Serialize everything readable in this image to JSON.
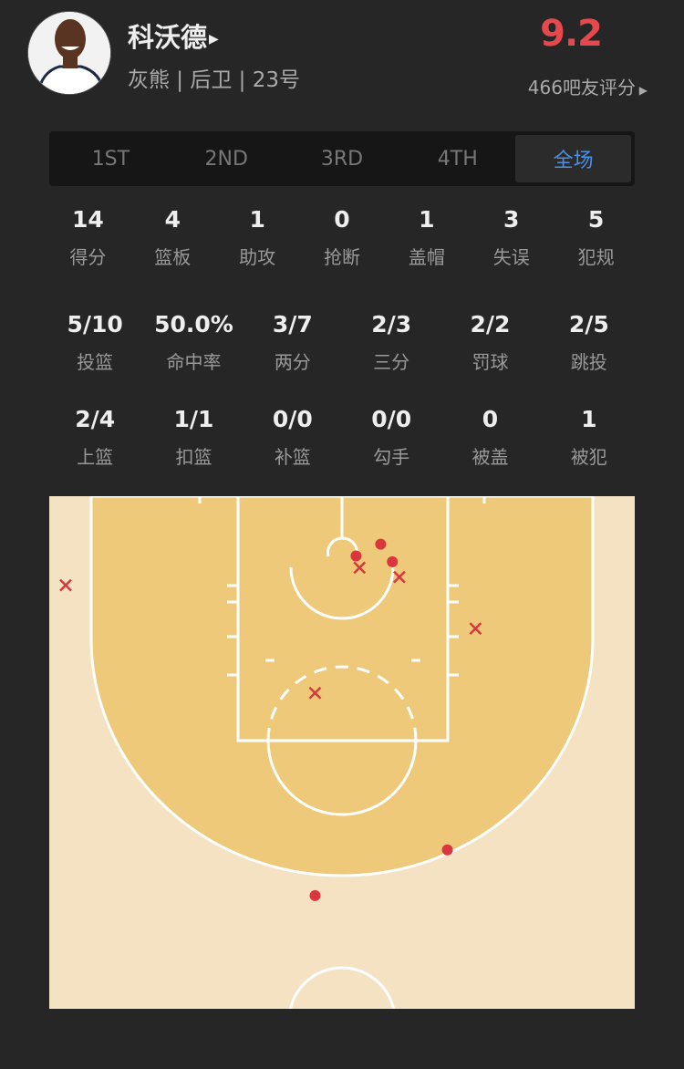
{
  "player": {
    "name": "科沃德",
    "info": "灰熊 | 后卫 | 23号",
    "score": "9.2",
    "rating_text": "466吧友评分"
  },
  "tabs": [
    {
      "label": "1ST"
    },
    {
      "label": "2ND"
    },
    {
      "label": "3RD"
    },
    {
      "label": "4TH"
    },
    {
      "label": "全场",
      "active": true
    }
  ],
  "stats_main": [
    {
      "v": "14",
      "l": "得分"
    },
    {
      "v": "4",
      "l": "篮板"
    },
    {
      "v": "1",
      "l": "助攻"
    },
    {
      "v": "0",
      "l": "抢断"
    },
    {
      "v": "1",
      "l": "盖帽"
    },
    {
      "v": "3",
      "l": "失误"
    },
    {
      "v": "5",
      "l": "犯规"
    }
  ],
  "stats_shooting": [
    {
      "v": "5/10",
      "l": "投篮"
    },
    {
      "v": "50.0%",
      "l": "命中率"
    },
    {
      "v": "3/7",
      "l": "两分"
    },
    {
      "v": "2/3",
      "l": "三分"
    },
    {
      "v": "2/2",
      "l": "罚球"
    },
    {
      "v": "2/5",
      "l": "跳投"
    }
  ],
  "stats_types": [
    {
      "v": "2/4",
      "l": "上篮"
    },
    {
      "v": "1/1",
      "l": "扣篮"
    },
    {
      "v": "0/0",
      "l": "补篮"
    },
    {
      "v": "0/0",
      "l": "勾手"
    },
    {
      "v": "0",
      "l": "被盖"
    },
    {
      "v": "1",
      "l": "被犯"
    }
  ],
  "colors": {
    "accent": "#4a90e2",
    "score": "#e5484d",
    "shot": "#d9363e",
    "court_inner": "#eec97a",
    "court_outer": "#f4e2c2"
  },
  "shots": [
    {
      "x_ft": 26.2,
      "y_ft": 5.1,
      "made": true
    },
    {
      "x_ft": 28.3,
      "y_ft": 4.1,
      "made": true
    },
    {
      "x_ft": 29.3,
      "y_ft": 5.6,
      "made": true
    },
    {
      "x_ft": 34.0,
      "y_ft": 30.2,
      "made": true
    },
    {
      "x_ft": 22.7,
      "y_ft": 34.1,
      "made": true
    },
    {
      "x_ft": 26.5,
      "y_ft": 6.1,
      "made": false
    },
    {
      "x_ft": 29.9,
      "y_ft": 6.9,
      "made": false
    },
    {
      "x_ft": 1.4,
      "y_ft": 7.6,
      "made": false
    },
    {
      "x_ft": 36.4,
      "y_ft": 11.3,
      "made": false
    },
    {
      "x_ft": 22.7,
      "y_ft": 16.8,
      "made": false
    }
  ]
}
